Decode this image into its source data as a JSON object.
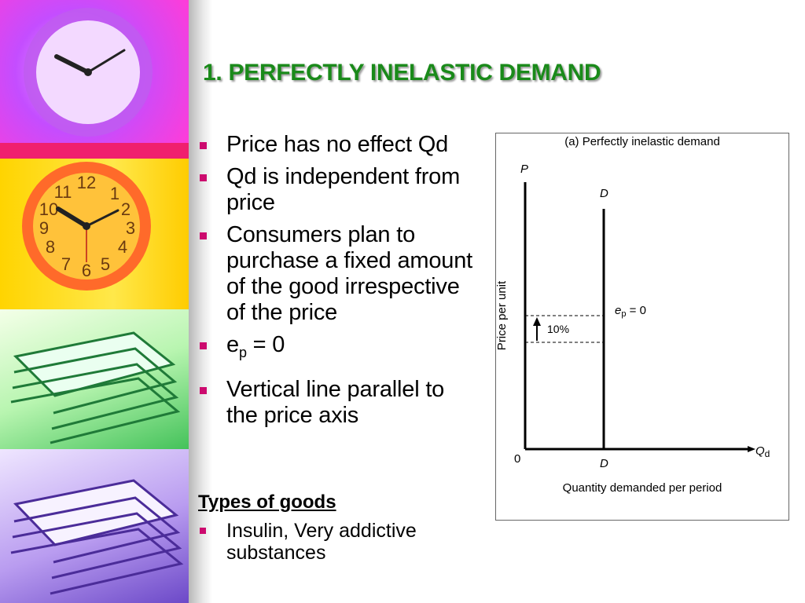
{
  "slide": {
    "title": "1. PERFECTLY INELASTIC DEMAND",
    "bullets": [
      {
        "text": "Price has no effect Qd"
      },
      {
        "text": "Qd is independent from price"
      },
      {
        "text": "Consumers plan to purchase a fixed amount of the good irrespective of the price"
      },
      {
        "base": "e",
        "sub": "p",
        "rest": " = 0"
      },
      {
        "text": "Vertical line parallel to the price axis"
      }
    ],
    "types_heading": "Types of goods",
    "types_items": [
      "Insulin, Very addictive substances"
    ]
  },
  "colors": {
    "title": "#1a8a1a",
    "bullet": "#cc0a6e"
  },
  "chart_data": {
    "type": "line",
    "title": "(a) Perfectly inelastic demand",
    "xlabel": "Quantity demanded per period",
    "ylabel": "Price per unit",
    "y_axis_symbol": "P",
    "x_axis_symbol_base": "Q",
    "x_axis_symbol_sub": "d",
    "origin_label": "0",
    "series": [
      {
        "name": "D",
        "points": [
          {
            "x": 1,
            "y": 0
          },
          {
            "x": 1,
            "y": 1
          }
        ]
      }
    ],
    "curve_label_top": "D",
    "curve_label_bottom": "D",
    "elasticity_label_base": "e",
    "elasticity_label_sub": "p",
    "elasticity_label_rest": " = 0",
    "price_change_label": "10%"
  }
}
